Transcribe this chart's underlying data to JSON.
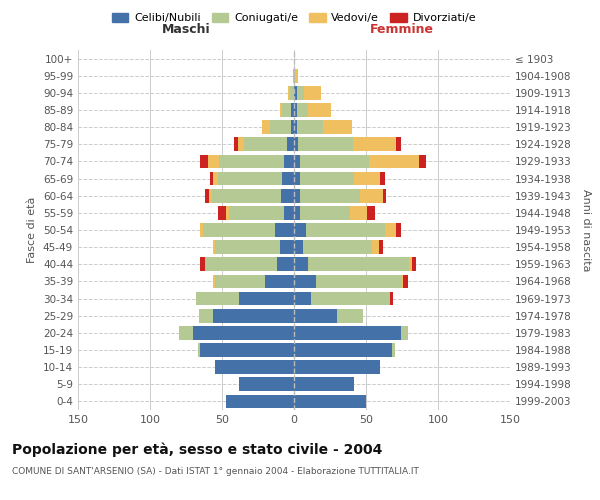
{
  "age_groups": [
    "0-4",
    "5-9",
    "10-14",
    "15-19",
    "20-24",
    "25-29",
    "30-34",
    "35-39",
    "40-44",
    "45-49",
    "50-54",
    "55-59",
    "60-64",
    "65-69",
    "70-74",
    "75-79",
    "80-84",
    "85-89",
    "90-94",
    "95-99",
    "100+"
  ],
  "birth_years": [
    "1999-2003",
    "1994-1998",
    "1989-1993",
    "1984-1988",
    "1979-1983",
    "1974-1978",
    "1969-1973",
    "1964-1968",
    "1959-1963",
    "1954-1958",
    "1949-1953",
    "1944-1948",
    "1939-1943",
    "1934-1938",
    "1929-1933",
    "1924-1928",
    "1919-1923",
    "1914-1918",
    "1909-1913",
    "1904-1908",
    "≤ 1903"
  ],
  "maschi": {
    "celibi": [
      47,
      38,
      55,
      65,
      70,
      56,
      38,
      20,
      12,
      10,
      13,
      7,
      9,
      8,
      7,
      5,
      2,
      2,
      0,
      0,
      0
    ],
    "coniugati": [
      0,
      0,
      0,
      2,
      10,
      10,
      30,
      35,
      50,
      45,
      50,
      38,
      48,
      45,
      45,
      30,
      15,
      6,
      3,
      1,
      0
    ],
    "vedovi": [
      0,
      0,
      0,
      0,
      0,
      0,
      0,
      1,
      0,
      1,
      2,
      2,
      2,
      3,
      8,
      4,
      5,
      2,
      1,
      0,
      0
    ],
    "divorziati": [
      0,
      0,
      0,
      0,
      0,
      0,
      0,
      0,
      3,
      0,
      0,
      6,
      3,
      2,
      5,
      3,
      0,
      0,
      0,
      0,
      0
    ]
  },
  "femmine": {
    "nubili": [
      50,
      42,
      60,
      68,
      74,
      30,
      12,
      15,
      10,
      6,
      8,
      4,
      4,
      4,
      4,
      3,
      2,
      2,
      2,
      0,
      0
    ],
    "coniugate": [
      0,
      0,
      0,
      2,
      5,
      18,
      55,
      60,
      70,
      48,
      55,
      35,
      42,
      38,
      48,
      38,
      18,
      8,
      5,
      1,
      0
    ],
    "vedove": [
      0,
      0,
      0,
      0,
      0,
      0,
      0,
      1,
      2,
      5,
      8,
      12,
      16,
      18,
      35,
      30,
      20,
      16,
      12,
      2,
      0
    ],
    "divorziate": [
      0,
      0,
      0,
      0,
      0,
      0,
      2,
      3,
      3,
      3,
      3,
      5,
      2,
      3,
      5,
      3,
      0,
      0,
      0,
      0,
      0
    ]
  },
  "colors": {
    "celibi": "#4472a8",
    "coniugati": "#b5c994",
    "vedovi": "#f0c060",
    "divorziati": "#cc2222"
  },
  "title": "Popolazione per età, sesso e stato civile - 2004",
  "subtitle": "COMUNE DI SANT'ARSENIO (SA) - Dati ISTAT 1° gennaio 2004 - Elaborazione TUTTITALIA.IT",
  "xlabel_left": "Maschi",
  "xlabel_right": "Femmine",
  "ylabel_left": "Fasce di età",
  "ylabel_right": "Anni di nascita",
  "xlim": 150,
  "legend_labels": [
    "Celibi/Nubili",
    "Coniugati/e",
    "Vedovi/e",
    "Divorziati/e"
  ]
}
